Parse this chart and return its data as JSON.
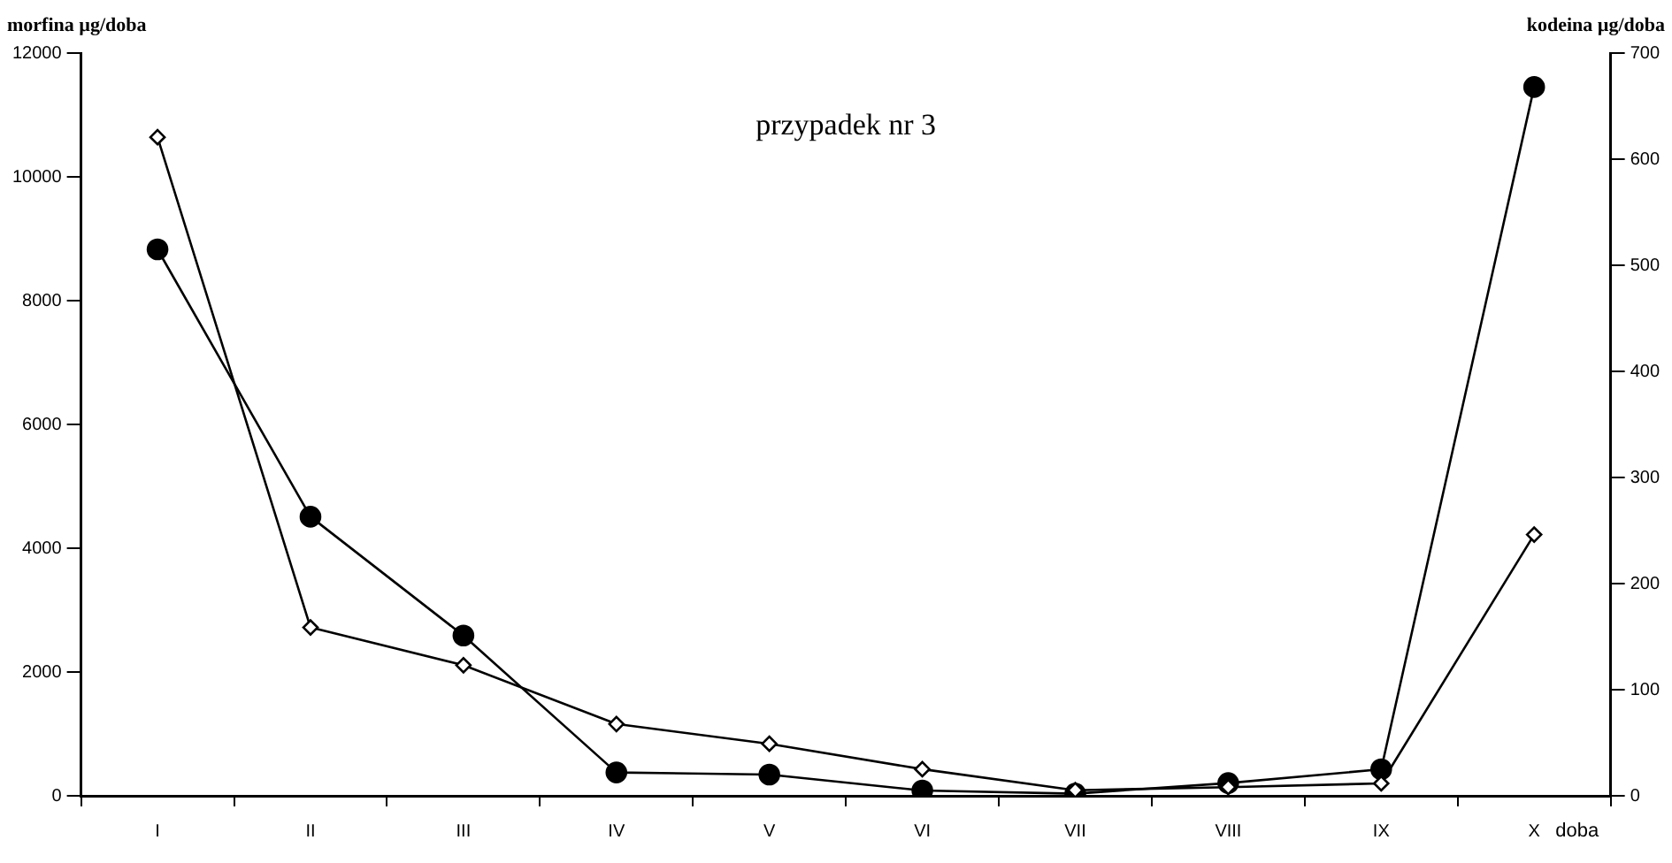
{
  "chart_data": {
    "type": "line",
    "title": "przypadek nr 3",
    "ylabel": "morfina µg/doba",
    "y2label": "kodeina µg/doba",
    "xlabel": "doba",
    "categories": [
      "I",
      "II",
      "III",
      "IV",
      "V",
      "VI",
      "VII",
      "VIII",
      "IX",
      "X"
    ],
    "series": [
      {
        "color": "#000000",
        "marker": "diamond",
        "values": [
          10640,
          2720,
          2110,
          1160,
          840,
          430,
          90,
          140,
          200,
          4220
        ]
      },
      {
        "color": "#000000",
        "marker": "circle",
        "axis": "y2",
        "values": [
          515,
          263,
          151,
          22,
          20,
          5,
          2,
          12,
          25,
          668
        ]
      }
    ],
    "ylim": [
      0,
      12000
    ],
    "yticks": [
      0,
      2000,
      4000,
      6000,
      8000,
      10000,
      12000
    ],
    "y2lim": [
      0,
      700
    ],
    "y2ticks": [
      0,
      100,
      200,
      300,
      400,
      500,
      600,
      700
    ],
    "grid": false,
    "legend": false,
    "line_style": "solid"
  }
}
